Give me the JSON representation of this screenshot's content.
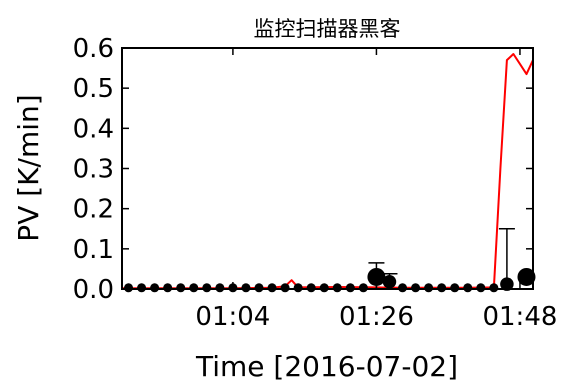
{
  "chart_data": {
    "type": "line",
    "title": "监控扫描器黑客",
    "xlabel": "Time [2016-07-02]",
    "ylabel": "PV [K/min]",
    "x_unit": "HH:MM",
    "xlim": [
      "00:47",
      "01:50"
    ],
    "ylim": [
      0,
      0.6
    ],
    "yticks": [
      "0.0",
      "0.1",
      "0.2",
      "0.3",
      "0.4",
      "0.5",
      "0.6"
    ],
    "xticks": [
      "01:04",
      "01:26",
      "01:48"
    ],
    "grid": false,
    "series": [
      {
        "color": "#ff0000",
        "style": "line",
        "x": [
          "00:47",
          "01:04",
          "01:10",
          "01:12",
          "01:13",
          "01:14",
          "01:20",
          "01:26",
          "01:30",
          "01:40",
          "01:44",
          "01:45",
          "01:46",
          "01:47",
          "01:48",
          "01:49",
          "01:50"
        ],
        "y": [
          0.002,
          0.002,
          0.003,
          0.007,
          0.022,
          0.004,
          0.005,
          0.004,
          0.003,
          0.003,
          0.004,
          0.3,
          0.57,
          0.585,
          0.56,
          0.535,
          0.57
        ]
      },
      {
        "color": "#000000",
        "style": "markers",
        "x": [
          "00:48",
          "00:50",
          "00:52",
          "00:54",
          "00:56",
          "00:58",
          "01:00",
          "01:02",
          "01:04",
          "01:06",
          "01:08",
          "01:10",
          "01:12",
          "01:14",
          "01:16",
          "01:18",
          "01:20",
          "01:22",
          "01:24",
          "01:26",
          "01:28",
          "01:30",
          "01:32",
          "01:34",
          "01:36",
          "01:38",
          "01:40",
          "01:42",
          "01:44",
          "01:46",
          "01:49"
        ],
        "y": [
          0.003,
          0.003,
          0.003,
          0.003,
          0.003,
          0.003,
          0.003,
          0.003,
          0.003,
          0.003,
          0.003,
          0.003,
          0.003,
          0.003,
          0.003,
          0.003,
          0.003,
          0.003,
          0.003,
          0.03,
          0.018,
          0.003,
          0.003,
          0.003,
          0.003,
          0.003,
          0.003,
          0.003,
          0.003,
          0.012,
          0.03
        ],
        "err": [
          0.002,
          0.002,
          0.002,
          0.002,
          0.002,
          0.002,
          0.002,
          0.002,
          0.002,
          0.002,
          0.002,
          0.002,
          0.002,
          0.002,
          0.002,
          0.002,
          0.002,
          0.002,
          0.002,
          0.035,
          0.02,
          0.002,
          0.002,
          0.002,
          0.002,
          0.002,
          0.002,
          0.002,
          0.002,
          0.138,
          0.005
        ],
        "size": [
          1,
          1,
          1,
          1,
          1,
          1,
          1,
          1,
          1,
          1,
          1,
          1,
          1,
          1,
          1,
          1,
          1,
          1,
          1,
          2,
          1.5,
          1,
          1,
          1,
          1,
          1,
          1,
          1,
          1,
          1.5,
          2
        ]
      }
    ]
  }
}
